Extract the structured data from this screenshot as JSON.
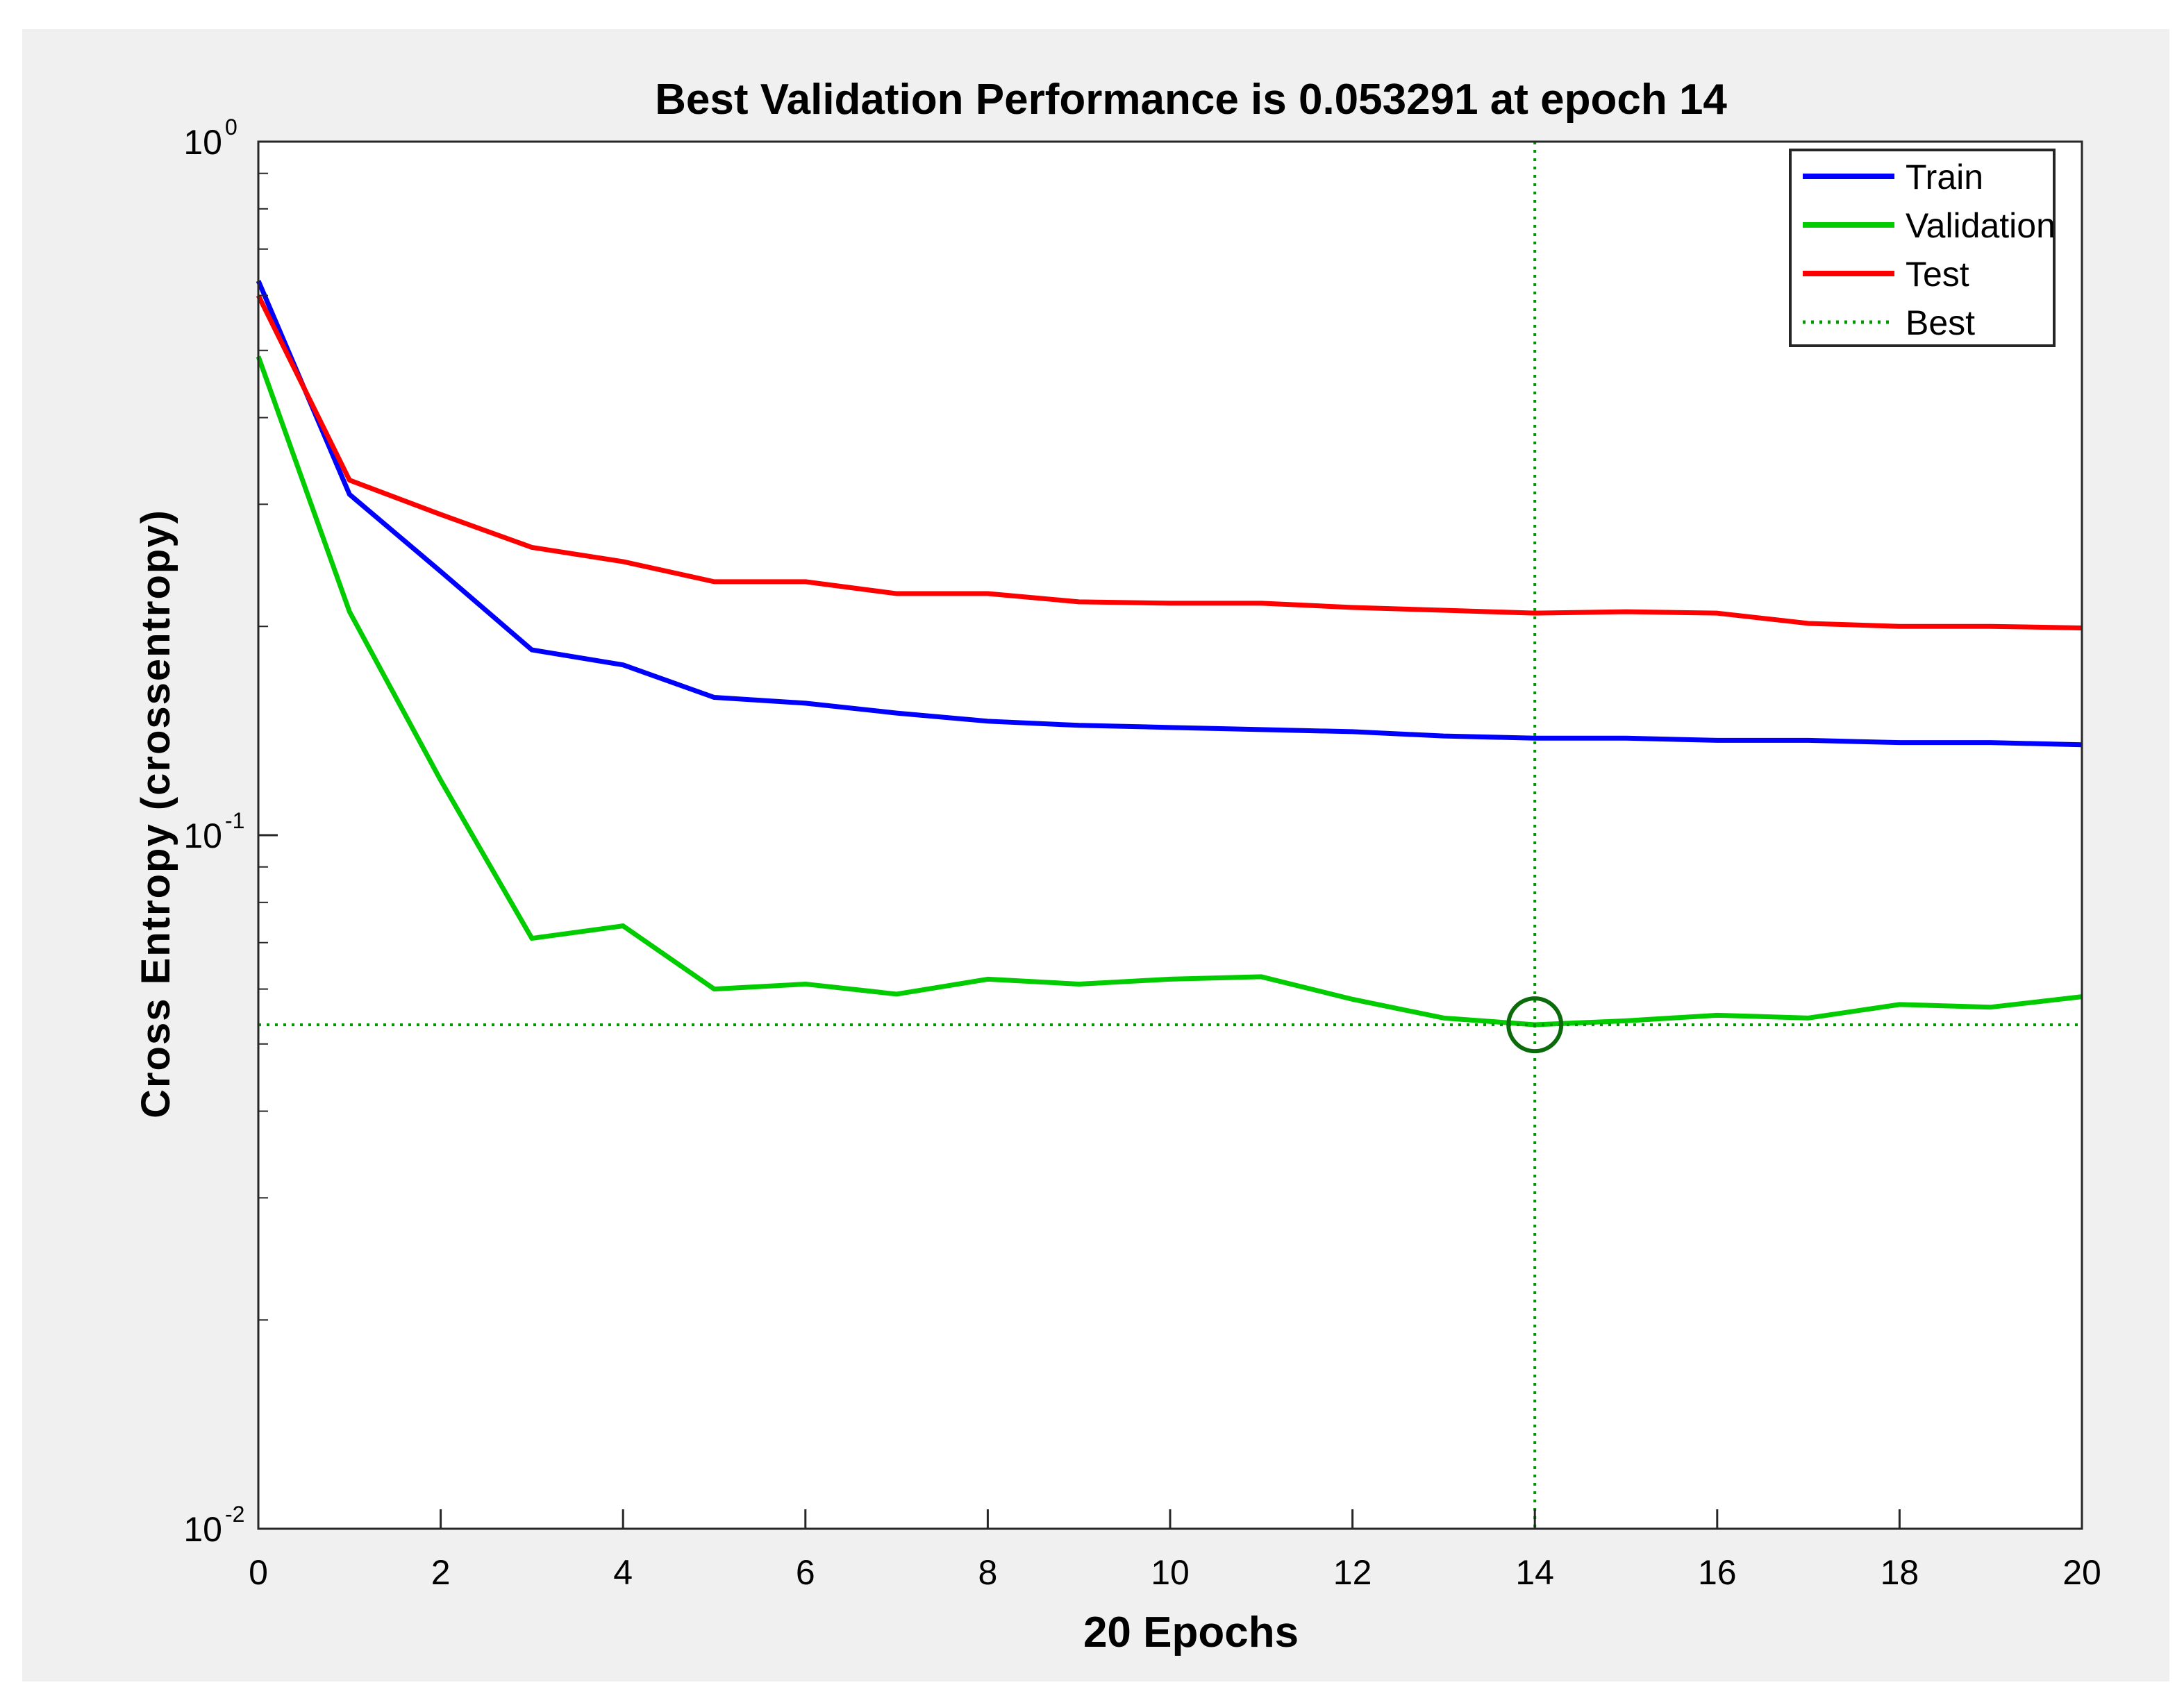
{
  "chart_data": {
    "type": "line",
    "title": "Best Validation Performance is 0.053291 at epoch 14",
    "xlabel": "20 Epochs",
    "ylabel": "Cross Entropy  (crossentropy)",
    "xlim": [
      0,
      20
    ],
    "ylim": [
      0.01,
      1
    ],
    "yscale": "log",
    "x": [
      0,
      1,
      2,
      3,
      4,
      5,
      6,
      7,
      8,
      9,
      10,
      11,
      12,
      13,
      14,
      15,
      16,
      17,
      18,
      19,
      20
    ],
    "xticks": [
      0,
      2,
      4,
      6,
      8,
      10,
      12,
      14,
      16,
      18,
      20
    ],
    "yticks": [
      {
        "value": 1,
        "base": "10",
        "exp": "0"
      },
      {
        "value": 0.1,
        "base": "10",
        "exp": "-1"
      },
      {
        "value": 0.01,
        "base": "10",
        "exp": "-2"
      }
    ],
    "series": [
      {
        "name": "Train",
        "color": "#0000ff",
        "style": "solid",
        "values": [
          0.63,
          0.31,
          0.24,
          0.185,
          0.176,
          0.158,
          0.155,
          0.15,
          0.146,
          0.144,
          0.143,
          0.142,
          0.141,
          0.139,
          0.138,
          0.138,
          0.137,
          0.137,
          0.136,
          0.136,
          0.135
        ]
      },
      {
        "name": "Validation",
        "color": "#00cc00",
        "style": "solid",
        "values": [
          0.49,
          0.21,
          0.12,
          0.071,
          0.074,
          0.06,
          0.061,
          0.059,
          0.062,
          0.061,
          0.062,
          0.0625,
          0.058,
          0.0545,
          0.0533,
          0.054,
          0.055,
          0.0545,
          0.057,
          0.0565,
          0.0585
        ]
      },
      {
        "name": "Test",
        "color": "#ff0000",
        "style": "solid",
        "values": [
          0.6,
          0.325,
          0.29,
          0.26,
          0.248,
          0.232,
          0.232,
          0.223,
          0.223,
          0.217,
          0.216,
          0.216,
          0.213,
          0.211,
          0.209,
          0.21,
          0.209,
          0.202,
          0.2,
          0.2,
          0.199
        ]
      }
    ],
    "best": {
      "name": "Best",
      "epoch": 14,
      "value": 0.053291,
      "color": "#009900",
      "style": "dotted"
    },
    "legend": {
      "position": "top-right",
      "entries": [
        "Train",
        "Validation",
        "Test",
        "Best"
      ]
    },
    "grid": false
  }
}
